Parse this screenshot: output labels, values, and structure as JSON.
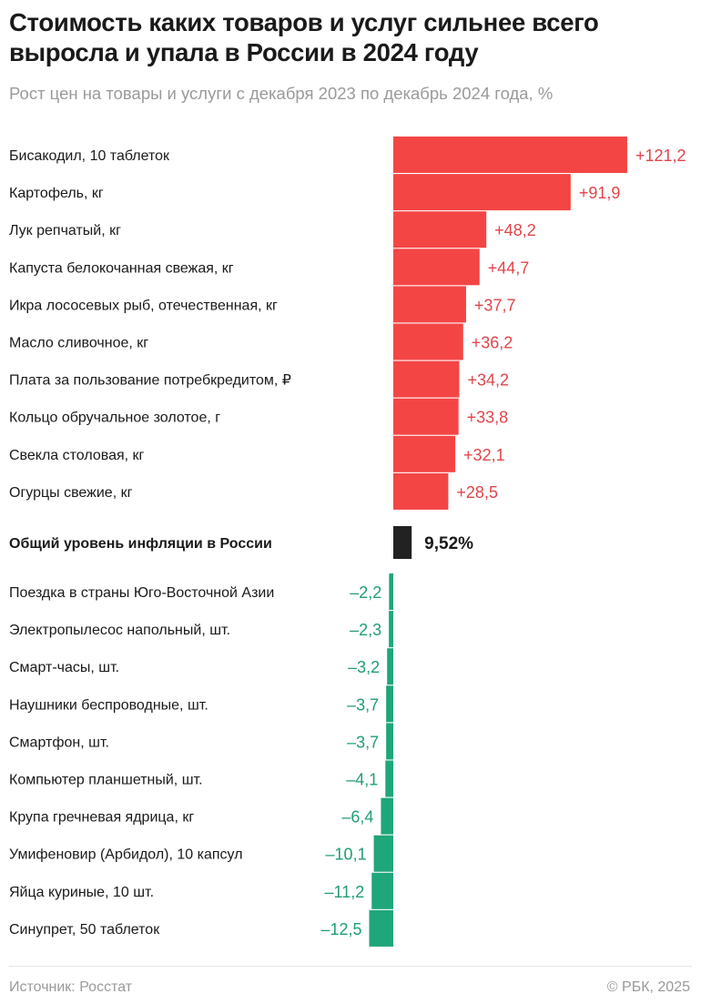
{
  "header": {
    "title": "Стоимость каких товаров и услуг сильнее всего выросла и упала в России в 2024 году",
    "subtitle": "Рост цен на товары и услуги с декабря 2023 по декабрь 2024 года, %"
  },
  "chart_data": {
    "type": "bar",
    "orientation": "horizontal",
    "colors": {
      "increase": "#f44545",
      "increase_label": "#e0454a",
      "decrease": "#1fa67a",
      "decrease_label": "#1f9e73",
      "inflation": "#222222"
    },
    "increases": [
      {
        "label": "Бисакодил, 10 таблеток",
        "value": 121.2,
        "text": "+121,2"
      },
      {
        "label": "Картофель, кг",
        "value": 91.9,
        "text": "+91,9"
      },
      {
        "label": "Лук репчатый, кг",
        "value": 48.2,
        "text": "+48,2"
      },
      {
        "label": "Капуста белокочанная свежая, кг",
        "value": 44.7,
        "text": "+44,7"
      },
      {
        "label": "Икра лососевых рыб, отечественная, кг",
        "value": 37.7,
        "text": "+37,7"
      },
      {
        "label": "Масло сливочное, кг",
        "value": 36.2,
        "text": "+36,2"
      },
      {
        "label": "Плата за пользование потребкредитом, ₽",
        "value": 34.2,
        "text": "+34,2"
      },
      {
        "label": "Кольцо обручальное золотое, г",
        "value": 33.8,
        "text": "+33,8"
      },
      {
        "label": "Свекла столовая, кг",
        "value": 32.1,
        "text": "+32,1"
      },
      {
        "label": "Огурцы свежие, кг",
        "value": 28.5,
        "text": "+28,5"
      }
    ],
    "inflation": {
      "label": "Общий уровень инфляции в России",
      "value": 9.52,
      "text": "9,52%"
    },
    "decreases": [
      {
        "label": "Поездка в страны Юго-Восточной Азии",
        "value": -2.2,
        "text": "–2,2"
      },
      {
        "label": "Электропылесос напольный, шт.",
        "value": -2.3,
        "text": "–2,3"
      },
      {
        "label": "Смарт-часы, шт.",
        "value": -3.2,
        "text": "–3,2"
      },
      {
        "label": "Наушники беспроводные, шт.",
        "value": -3.7,
        "text": "–3,7"
      },
      {
        "label": "Смартфон, шт.",
        "value": -3.7,
        "text": "–3,7"
      },
      {
        "label": "Компьютер планшетный, шт.",
        "value": -4.1,
        "text": "–4,1"
      },
      {
        "label": "Крупа гречневая ядрица, кг",
        "value": -6.4,
        "text": "–6,4"
      },
      {
        "label": "Умифеновир (Арбидол), 10 капсул",
        "value": -10.1,
        "text": "–10,1"
      },
      {
        "label": "Яйца куриные, 10 шт.",
        "value": -11.2,
        "text": "–11,2"
      },
      {
        "label": "Синупрет, 50 таблеток",
        "value": -12.5,
        "text": "–12,5"
      }
    ]
  },
  "footer": {
    "source": "Источник: Росстат",
    "copyright": "© РБК, 2025"
  }
}
